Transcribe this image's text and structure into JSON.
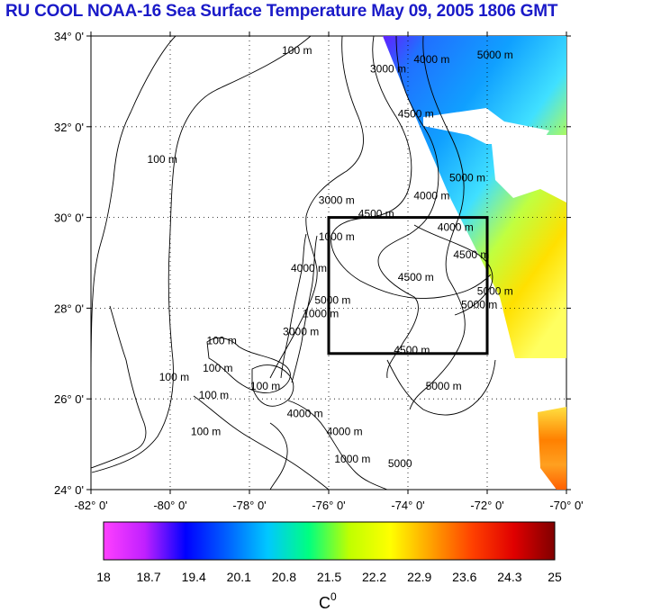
{
  "title": "RU COOL  NOAA-16 Sea Surface Temperature May 09, 2005 1806 GMT",
  "map": {
    "lat_ticks": [
      "34° 0'",
      "32° 0'",
      "30° 0'",
      "28° 0'",
      "26° 0'",
      "24° 0'"
    ],
    "lon_ticks": [
      "-82° 0'",
      "-80° 0'",
      "-78° 0'",
      "-76° 0'",
      "-74° 0'",
      "-72° 0'",
      "-70° 0'"
    ],
    "lon_range": [
      -82,
      -70
    ],
    "lat_range": [
      24,
      34
    ],
    "grid": true,
    "study_box": {
      "lon": [
        -76,
        -72
      ],
      "lat": [
        27,
        30
      ]
    },
    "contour_labels": [
      {
        "text": "100 m",
        "lon": -76.8,
        "lat": 33.6
      },
      {
        "text": "3000 m",
        "lon": -74.5,
        "lat": 33.2
      },
      {
        "text": "4000 m",
        "lon": -73.4,
        "lat": 33.4
      },
      {
        "text": "5000 m",
        "lon": -71.8,
        "lat": 33.5
      },
      {
        "text": "4500 m",
        "lon": -73.8,
        "lat": 32.2
      },
      {
        "text": "5000 m",
        "lon": -72.5,
        "lat": 30.8
      },
      {
        "text": "4000 m",
        "lon": -73.4,
        "lat": 30.4
      },
      {
        "text": "3000 m",
        "lon": -75.8,
        "lat": 30.3
      },
      {
        "text": "4500 m",
        "lon": -74.8,
        "lat": 30.0
      },
      {
        "text": "4000 m",
        "lon": -72.8,
        "lat": 29.7
      },
      {
        "text": "4500 m",
        "lon": -72.4,
        "lat": 29.1
      },
      {
        "text": "4500 m",
        "lon": -73.8,
        "lat": 28.6
      },
      {
        "text": "5000 m",
        "lon": -72.2,
        "lat": 28.0
      },
      {
        "text": "5000 m",
        "lon": -71.8,
        "lat": 28.3
      },
      {
        "text": "4500 m",
        "lon": -73.9,
        "lat": 27.0
      },
      {
        "text": "5000 m",
        "lon": -73.1,
        "lat": 26.2
      },
      {
        "text": "100 m",
        "lon": -80.2,
        "lat": 31.2
      },
      {
        "text": "100 m",
        "lon": -78.7,
        "lat": 27.2
      },
      {
        "text": "100 m",
        "lon": -78.8,
        "lat": 26.6
      },
      {
        "text": "100 m",
        "lon": -78.9,
        "lat": 26.0
      },
      {
        "text": "100 m",
        "lon": -77.6,
        "lat": 26.2
      },
      {
        "text": "100 m",
        "lon": -79.9,
        "lat": 26.4
      },
      {
        "text": "100 m",
        "lon": -79.1,
        "lat": 25.2
      },
      {
        "text": "4000 m",
        "lon": -76.6,
        "lat": 25.6
      },
      {
        "text": "1000 m",
        "lon": -76.2,
        "lat": 27.8
      },
      {
        "text": "3000 m",
        "lon": -76.7,
        "lat": 27.4
      },
      {
        "text": "4000 m",
        "lon": -76.5,
        "lat": 28.8
      },
      {
        "text": "1000 m",
        "lon": -75.8,
        "lat": 29.5
      },
      {
        "text": "5000 m",
        "lon": -75.9,
        "lat": 28.1
      },
      {
        "text": "4000 m",
        "lon": -75.6,
        "lat": 25.2
      },
      {
        "text": "5000",
        "lon": -74.2,
        "lat": 24.5
      },
      {
        "text": "1000 m",
        "lon": -75.4,
        "lat": 24.6
      }
    ]
  },
  "colorbar": {
    "ticks": [
      "18",
      "18.7",
      "19.4",
      "20.1",
      "20.8",
      "21.5",
      "22.2",
      "22.9",
      "23.6",
      "24.3",
      "25"
    ],
    "unit": "C",
    "unit_sup": "0",
    "range": [
      18,
      25
    ],
    "colors": [
      "#ff40ff",
      "#c020ff",
      "#0000ff",
      "#0060ff",
      "#00c8ff",
      "#00ff80",
      "#c0ff00",
      "#ffff00",
      "#ffa000",
      "#ff4000",
      "#e00000",
      "#800000"
    ]
  }
}
